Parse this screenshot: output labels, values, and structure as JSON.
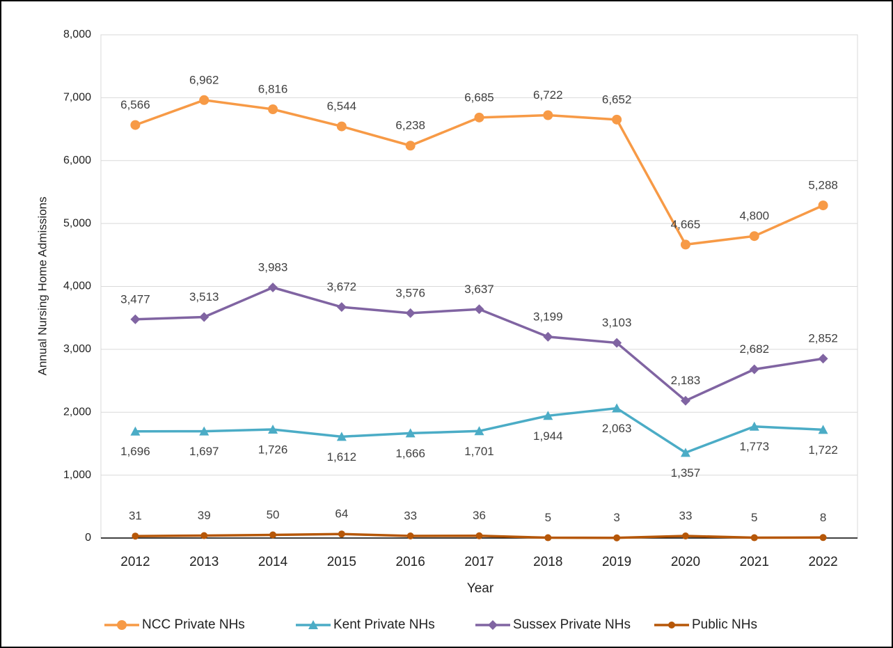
{
  "chart_data": {
    "type": "line",
    "x_label": "Year",
    "y_label": "Annual Nursing Home Admissions",
    "categories": [
      "2012",
      "2013",
      "2014",
      "2015",
      "2016",
      "2017",
      "2018",
      "2019",
      "2020",
      "2021",
      "2022"
    ],
    "ylim": [
      0,
      8000
    ],
    "yticks": [
      0,
      {
        "value": 1000,
        "label": "1,000"
      },
      {
        "value": 2000,
        "label": "2,000"
      },
      {
        "value": 3000,
        "label": "3,000"
      },
      {
        "value": 4000,
        "label": "4,000"
      },
      {
        "value": 5000,
        "label": "5,000"
      },
      {
        "value": 6000,
        "label": "6,000"
      },
      {
        "value": 7000,
        "label": "7,000"
      },
      {
        "value": 8000,
        "label": "8,000"
      }
    ],
    "grid": true,
    "legend": "bottom",
    "series": [
      {
        "name": "NCC Private NHs",
        "color": "#f79a46",
        "marker": "circle",
        "label_position": "above",
        "values": [
          6566,
          6962,
          6816,
          6544,
          6238,
          6685,
          6722,
          6652,
          4665,
          4800,
          5288
        ],
        "value_labels": [
          "6,566",
          "6,962",
          "6,816",
          "6,544",
          "6,238",
          "6,685",
          "6,722",
          "6,652",
          "4,665",
          "4,800",
          "5,288"
        ]
      },
      {
        "name": "Kent Private NHs",
        "color": "#4bacc6",
        "marker": "triangle",
        "label_position": "below",
        "values": [
          1696,
          1697,
          1726,
          1612,
          1666,
          1701,
          1944,
          2063,
          1357,
          1773,
          1722
        ],
        "value_labels": [
          "1,696",
          "1,697",
          "1,726",
          "1,612",
          "1,666",
          "1,701",
          "1,944",
          "2,063",
          "1,357",
          "1,773",
          "1,722"
        ]
      },
      {
        "name": "Sussex Private NHs",
        "color": "#8064a2",
        "marker": "diamond",
        "label_position": "above",
        "values": [
          3477,
          3513,
          3983,
          3672,
          3576,
          3637,
          3199,
          3103,
          2183,
          2682,
          2852
        ],
        "value_labels": [
          "3,477",
          "3,513",
          "3,983",
          "3,672",
          "3,576",
          "3,637",
          "3,199",
          "3,103",
          "2,183",
          "2,682",
          "2,852"
        ]
      },
      {
        "name": "Public NHs",
        "color": "#b65708",
        "marker": "small-circle",
        "label_position": "above",
        "values": [
          31,
          39,
          50,
          64,
          33,
          36,
          5,
          3,
          33,
          5,
          8
        ]
      }
    ]
  }
}
